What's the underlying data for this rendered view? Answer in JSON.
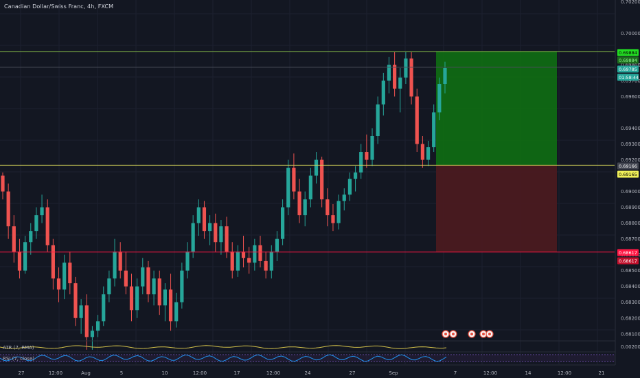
{
  "title": "Canadian Dollar/Swiss Franc, 4h, FXCM",
  "colors": {
    "background": "#131722",
    "up": "#26a69a",
    "down": "#ef5350",
    "target_line": "#8bc34a",
    "entry_line": "#d4d45a",
    "stop_line": "#ff1744",
    "profit_zone": "#0f6e13",
    "loss_zone": "#4a1a20",
    "atr_line": "#d4c24a",
    "rsi_line": "#2196f3"
  },
  "price_axis": {
    "ticks": [
      "0.70200",
      "0.70000",
      "0.69800",
      "0.69700",
      "0.69600",
      "0.69400",
      "0.69300",
      "0.69200",
      "0.69000",
      "0.68900",
      "0.68800",
      "0.68700",
      "0.68600",
      "0.68500",
      "0.68400",
      "0.68300",
      "0.68200",
      "0.68100"
    ],
    "tags": [
      {
        "text": "0.69884",
        "bg": "#22dd22",
        "fg": "#000000"
      },
      {
        "text": "0.69884",
        "bg": "#1d6b1d",
        "fg": "#8eff8e"
      },
      {
        "text": "0.69785",
        "bg": "#26a69a",
        "fg": "#ffffff"
      },
      {
        "text": "01:58:44",
        "bg": "#26a69a",
        "fg": "#ffffff"
      },
      {
        "text": "0.69166",
        "bg": "#434651",
        "fg": "#ffffff"
      },
      {
        "text": "0.69165",
        "bg": "#f0f059",
        "fg": "#000000"
      },
      {
        "text": "0.68617",
        "bg": "#ff1744",
        "fg": "#ffffff"
      },
      {
        "text": "0.68617",
        "bg": "#c0102c",
        "fg": "#ffffff"
      }
    ],
    "sub_ticks": [
      "0.00200"
    ]
  },
  "time_axis": [
    "27",
    "12:00",
    "Aug",
    "5",
    "10",
    "12:00",
    "17",
    "12:00",
    "24",
    "27",
    "Sep",
    "7",
    "12:00",
    "14",
    "12:00",
    "21"
  ],
  "indicators": {
    "atr_label": "ATR (7, RMA)",
    "rsi_label": "RSI (7, close)"
  },
  "position": {
    "target": 0.69884,
    "entry": 0.69166,
    "stop": 0.68617
  },
  "chart_data": {
    "type": "candlestick",
    "title": "Canadian Dollar/Swiss Franc, 4h, FXCM",
    "symbol": "CADCHF",
    "interval": "4h",
    "ylim": [
      0.6806,
      0.7021
    ],
    "series": [
      {
        "name": "price",
        "ohlc": [
          [
            0.691,
            0.6912,
            0.6895,
            0.69
          ],
          [
            0.69,
            0.6905,
            0.687,
            0.6878
          ],
          [
            0.6878,
            0.6885,
            0.6855,
            0.6862
          ],
          [
            0.6862,
            0.687,
            0.6845,
            0.685
          ],
          [
            0.685,
            0.6872,
            0.6848,
            0.6868
          ],
          [
            0.6868,
            0.688,
            0.686,
            0.6875
          ],
          [
            0.6875,
            0.689,
            0.687,
            0.6885
          ],
          [
            0.6885,
            0.6898,
            0.688,
            0.689
          ],
          [
            0.689,
            0.6895,
            0.6862,
            0.6866
          ],
          [
            0.6866,
            0.687,
            0.6838,
            0.6845
          ],
          [
            0.6845,
            0.6852,
            0.683,
            0.6838
          ],
          [
            0.6838,
            0.686,
            0.6832,
            0.6855
          ],
          [
            0.6855,
            0.6862,
            0.6835,
            0.6842
          ],
          [
            0.6842,
            0.6846,
            0.6815,
            0.682
          ],
          [
            0.682,
            0.6832,
            0.681,
            0.6828
          ],
          [
            0.6828,
            0.6835,
            0.68,
            0.6808
          ],
          [
            0.6808,
            0.6815,
            0.68,
            0.6812
          ],
          [
            0.6812,
            0.6822,
            0.6808,
            0.6818
          ],
          [
            0.6818,
            0.684,
            0.6815,
            0.6835
          ],
          [
            0.6835,
            0.685,
            0.683,
            0.6845
          ],
          [
            0.6845,
            0.687,
            0.684,
            0.6862
          ],
          [
            0.6862,
            0.6868,
            0.6845,
            0.685
          ],
          [
            0.685,
            0.6862,
            0.6835,
            0.684
          ],
          [
            0.684,
            0.6848,
            0.6818,
            0.6825
          ],
          [
            0.6825,
            0.6845,
            0.682,
            0.684
          ],
          [
            0.684,
            0.6858,
            0.6835,
            0.6852
          ],
          [
            0.6852,
            0.6856,
            0.683,
            0.6835
          ],
          [
            0.6835,
            0.685,
            0.6828,
            0.6845
          ],
          [
            0.6845,
            0.685,
            0.6822,
            0.6828
          ],
          [
            0.6828,
            0.6842,
            0.6818,
            0.6838
          ],
          [
            0.6838,
            0.6848,
            0.6812,
            0.6818
          ],
          [
            0.6818,
            0.6836,
            0.6814,
            0.683
          ],
          [
            0.683,
            0.6855,
            0.6826,
            0.685
          ],
          [
            0.685,
            0.6868,
            0.6845,
            0.6862
          ],
          [
            0.6862,
            0.6885,
            0.6858,
            0.688
          ],
          [
            0.688,
            0.6895,
            0.6872,
            0.689
          ],
          [
            0.689,
            0.6894,
            0.687,
            0.6875
          ],
          [
            0.6875,
            0.6885,
            0.6866,
            0.688
          ],
          [
            0.688,
            0.6886,
            0.6862,
            0.6868
          ],
          [
            0.6868,
            0.6882,
            0.686,
            0.6878
          ],
          [
            0.6878,
            0.6884,
            0.6858,
            0.6862
          ],
          [
            0.6862,
            0.6868,
            0.6845,
            0.685
          ],
          [
            0.685,
            0.6866,
            0.6846,
            0.6862
          ],
          [
            0.6862,
            0.6872,
            0.6852,
            0.6858
          ],
          [
            0.6858,
            0.6865,
            0.6848,
            0.6855
          ],
          [
            0.6855,
            0.687,
            0.685,
            0.6866
          ],
          [
            0.6866,
            0.6872,
            0.6852,
            0.6856
          ],
          [
            0.6856,
            0.6862,
            0.6845,
            0.685
          ],
          [
            0.685,
            0.6866,
            0.6845,
            0.6862
          ],
          [
            0.6862,
            0.6875,
            0.6856,
            0.687
          ],
          [
            0.687,
            0.6895,
            0.6866,
            0.689
          ],
          [
            0.689,
            0.692,
            0.6885,
            0.6915
          ],
          [
            0.6915,
            0.6924,
            0.6895,
            0.69
          ],
          [
            0.69,
            0.6908,
            0.688,
            0.6885
          ],
          [
            0.6885,
            0.69,
            0.6878,
            0.6895
          ],
          [
            0.6895,
            0.6915,
            0.689,
            0.691
          ],
          [
            0.691,
            0.6925,
            0.6905,
            0.692
          ],
          [
            0.692,
            0.6922,
            0.689,
            0.6895
          ],
          [
            0.6895,
            0.6902,
            0.6878,
            0.6885
          ],
          [
            0.6885,
            0.6892,
            0.6875,
            0.688
          ],
          [
            0.688,
            0.6898,
            0.6876,
            0.6894
          ],
          [
            0.6894,
            0.6902,
            0.6888,
            0.6898
          ],
          [
            0.6898,
            0.6912,
            0.6894,
            0.6908
          ],
          [
            0.6908,
            0.6916,
            0.69,
            0.6912
          ],
          [
            0.6912,
            0.693,
            0.6908,
            0.6925
          ],
          [
            0.6925,
            0.6936,
            0.6915,
            0.692
          ],
          [
            0.692,
            0.694,
            0.6916,
            0.6935
          ],
          [
            0.6935,
            0.696,
            0.693,
            0.6955
          ],
          [
            0.6955,
            0.6975,
            0.6948,
            0.697
          ],
          [
            0.697,
            0.6985,
            0.6962,
            0.698
          ],
          [
            0.698,
            0.6988,
            0.696,
            0.6965
          ],
          [
            0.6965,
            0.6978,
            0.695,
            0.6972
          ],
          [
            0.6972,
            0.6988,
            0.6968,
            0.6984
          ],
          [
            0.6984,
            0.6988,
            0.6955,
            0.696
          ],
          [
            0.696,
            0.6965,
            0.6925,
            0.693
          ],
          [
            0.693,
            0.6935,
            0.6915,
            0.692
          ],
          [
            0.692,
            0.6932,
            0.6916,
            0.6928
          ],
          [
            0.6928,
            0.6955,
            0.6925,
            0.695
          ],
          [
            0.695,
            0.6972,
            0.6945,
            0.6968
          ],
          [
            0.6968,
            0.6982,
            0.6962,
            0.6978
          ]
        ]
      }
    ]
  }
}
